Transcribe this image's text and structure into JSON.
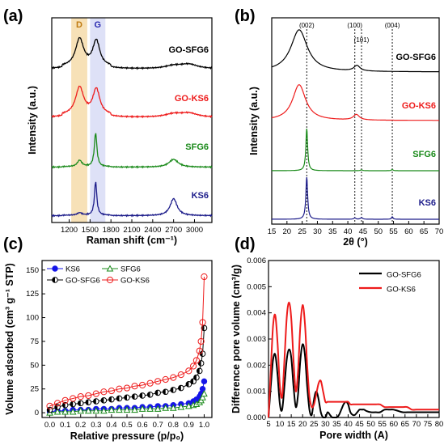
{
  "figure": {
    "panels": {
      "a": "(a)",
      "b": "(b)",
      "c": "(c)",
      "d": "(d)"
    }
  },
  "chart_data": [
    {
      "panel": "(a)",
      "type": "line",
      "xlabel": "Raman shift (cm⁻¹)",
      "ylabel": "Intensity (a.u.)",
      "xlim": [
        950,
        3250
      ],
      "xticks": [
        1200,
        1500,
        1800,
        2100,
        2400,
        2700,
        3000
      ],
      "bands": [
        {
          "label": "D",
          "range": [
            1230,
            1460
          ],
          "color": "#f6dcaa",
          "label_color": "#c07a10"
        },
        {
          "label": "G",
          "range": [
            1500,
            1720
          ],
          "color": "#d8dcf6",
          "label_color": "#2b2bb0"
        }
      ],
      "series": [
        {
          "name": "GO-SFG6",
          "color": "#000000",
          "offset": 3,
          "peaks": [
            [
              1350,
              0.78,
              70
            ],
            [
              1590,
              0.72,
              60
            ],
            [
              2700,
              0.08,
              150
            ],
            [
              2920,
              0.12,
              150
            ]
          ],
          "baseline": 0.1
        },
        {
          "name": "GO-KS6",
          "color": "#ee1c1c",
          "offset": 2,
          "peaks": [
            [
              1350,
              0.78,
              70
            ],
            [
              1590,
              0.72,
              60
            ],
            [
              2700,
              0.09,
              150
            ],
            [
              2920,
              0.11,
              150
            ]
          ],
          "baseline": 0.1
        },
        {
          "name": "SFG6",
          "color": "#1a8a1a",
          "offset": 1,
          "peaks": [
            [
              1350,
              0.18,
              40
            ],
            [
              1580,
              0.95,
              22
            ],
            [
              2700,
              0.22,
              80
            ]
          ],
          "baseline": 0.02
        },
        {
          "name": "KS6",
          "color": "#1c1c8a",
          "offset": 0,
          "peaks": [
            [
              1350,
              0.07,
              40
            ],
            [
              1580,
              0.95,
              20
            ],
            [
              2700,
              0.48,
              60
            ]
          ],
          "baseline": 0.02
        }
      ]
    },
    {
      "panel": "(b)",
      "type": "line",
      "xlabel": "2θ (°)",
      "ylabel": "Intensity (a.u.)",
      "xlim": [
        15,
        70
      ],
      "xticks": [
        15,
        20,
        25,
        30,
        35,
        40,
        45,
        50,
        55,
        60,
        65,
        70
      ],
      "reference_lines": [
        {
          "x": 26.5,
          "label": "(002)"
        },
        {
          "x": 42.3,
          "label": "(100)"
        },
        {
          "x": 44.5,
          "label": "(101)"
        },
        {
          "x": 54.6,
          "label": "(004)"
        }
      ],
      "series": [
        {
          "name": "GO-SFG6",
          "color": "#000000",
          "offset": 3,
          "peaks": [
            [
              24.0,
              1.0,
              3.3
            ],
            [
              43.0,
              0.13,
              1.2
            ]
          ],
          "baseline": 0.04
        },
        {
          "name": "GO-KS6",
          "color": "#ee1c1c",
          "offset": 2,
          "peaks": [
            [
              24.0,
              0.85,
              2.6
            ],
            [
              42.8,
              0.13,
              1.2
            ]
          ],
          "baseline": 0.04
        },
        {
          "name": "SFG6",
          "color": "#1a8a1a",
          "offset": 1,
          "peaks": [
            [
              26.5,
              1.0,
              0.35
            ],
            [
              44.5,
              0.02,
              0.4
            ],
            [
              54.6,
              0.03,
              0.3
            ]
          ],
          "baseline": 0.0
        },
        {
          "name": "KS6",
          "color": "#1c1c8a",
          "offset": 0,
          "peaks": [
            [
              26.5,
              1.0,
              0.35
            ],
            [
              42.3,
              0.03,
              0.4
            ],
            [
              44.5,
              0.04,
              0.4
            ],
            [
              54.6,
              0.06,
              0.3
            ]
          ],
          "baseline": 0.0
        }
      ]
    },
    {
      "panel": "(c)",
      "type": "scatter",
      "xlabel": "Relative pressure (p/p₀)",
      "ylabel": "Volume adsorbed (cm³ g⁻¹ STP)",
      "xlim": [
        -0.05,
        1.05
      ],
      "ylim": [
        -5,
        160
      ],
      "xticks": [
        0.0,
        0.1,
        0.2,
        0.3,
        0.4,
        0.5,
        0.6,
        0.7,
        0.8,
        0.9,
        1.0
      ],
      "yticks": [
        0,
        25,
        50,
        75,
        100,
        125,
        150
      ],
      "x": [
        0.0,
        0.05,
        0.1,
        0.15,
        0.2,
        0.25,
        0.3,
        0.35,
        0.4,
        0.45,
        0.5,
        0.55,
        0.6,
        0.65,
        0.7,
        0.75,
        0.8,
        0.85,
        0.9,
        0.93,
        0.95,
        0.97,
        0.98,
        0.99,
        1.0
      ],
      "series": [
        {
          "name": "KS6",
          "color": "#1515e8",
          "marker": "circle-filled",
          "values": [
            1,
            2,
            2,
            3,
            3,
            3,
            4,
            4,
            4,
            5,
            5,
            5,
            6,
            6,
            7,
            7,
            8,
            9,
            10,
            12,
            14,
            17,
            20,
            25,
            33
          ]
        },
        {
          "name": "SFG6",
          "color": "#1a8a1a",
          "marker": "triangle-open",
          "values": [
            0,
            1,
            1,
            1,
            2,
            2,
            2,
            2,
            3,
            3,
            3,
            3,
            4,
            4,
            4,
            5,
            5,
            6,
            7,
            8,
            9,
            11,
            13,
            16,
            20
          ]
        },
        {
          "name": "GO-SFG6",
          "color": "#000000",
          "marker": "circle-half",
          "values": [
            3,
            6,
            8,
            9,
            10,
            11,
            12,
            13,
            14,
            15,
            16,
            17,
            18,
            19,
            21,
            22,
            24,
            26,
            30,
            33,
            37,
            44,
            52,
            62,
            89
          ]
        },
        {
          "name": "GO-KS6",
          "color": "#ee1c1c",
          "marker": "circle-open",
          "values": [
            7,
            10,
            13,
            15,
            17,
            18,
            20,
            22,
            23,
            25,
            26,
            28,
            29,
            31,
            33,
            35,
            37,
            40,
            44,
            49,
            55,
            65,
            75,
            95,
            143
          ]
        }
      ]
    },
    {
      "panel": "(d)",
      "type": "line",
      "xlabel": "Pore width (A)",
      "ylabel": "Difference pore volume (cm³/g)",
      "xlim": [
        5,
        80
      ],
      "ylim": [
        0,
        0.006
      ],
      "xticks": [
        5,
        10,
        15,
        20,
        25,
        30,
        35,
        40,
        45,
        50,
        55,
        60,
        65,
        70,
        75,
        80
      ],
      "yticks": [
        0.0,
        0.001,
        0.002,
        0.003,
        0.004,
        0.005,
        0.006
      ],
      "series": [
        {
          "name": "GO-SFG6",
          "color": "#000000",
          "x": [
            5,
            6,
            7,
            8,
            9,
            10,
            11,
            12,
            13,
            14,
            15,
            16,
            17,
            18,
            19,
            20,
            21,
            22,
            23,
            24,
            25,
            26,
            27,
            28,
            29,
            30,
            31,
            32,
            33,
            34,
            35,
            36,
            37,
            38,
            39,
            40,
            41,
            42,
            43,
            44,
            45,
            46,
            47,
            48,
            50,
            52,
            54,
            56,
            58,
            60,
            62,
            64,
            66,
            68,
            70,
            72,
            74,
            76,
            78,
            80
          ],
          "values": [
            0.0,
            0.0012,
            0.0022,
            0.0024,
            0.0016,
            0.0005,
            0.0003,
            0.0012,
            0.0022,
            0.0026,
            0.0023,
            0.0012,
            0.0004,
            0.0009,
            0.0022,
            0.0028,
            0.0024,
            0.0012,
            0.0003,
            0.0001,
            0.0007,
            0.001,
            0.0007,
            0.0002,
            0.0,
            0.0,
            0.0002,
            0.0001,
            0.0,
            0.0,
            0.0,
            0.0001,
            0.0003,
            0.0005,
            0.0006,
            0.0005,
            0.0002,
            0.0001,
            0.0001,
            0.0002,
            0.0003,
            0.0003,
            0.0003,
            0.00025,
            0.0002,
            0.0002,
            0.0002,
            0.0003,
            0.0003,
            0.0003,
            0.00025,
            0.0002,
            0.0002,
            0.0002,
            0.0002,
            0.0002,
            0.0002,
            0.0002,
            0.0002,
            0.0002
          ]
        },
        {
          "name": "GO-KS6",
          "color": "#ee1c1c",
          "x": [
            5,
            6,
            7,
            8,
            9,
            10,
            11,
            12,
            13,
            14,
            15,
            16,
            17,
            18,
            19,
            20,
            21,
            22,
            23,
            24,
            25,
            26,
            27,
            28,
            29,
            30,
            31,
            32,
            33,
            34,
            35,
            36,
            37,
            38,
            39,
            40,
            41,
            42,
            43,
            44,
            45,
            46,
            47,
            48,
            50,
            52,
            54,
            56,
            58,
            60,
            62,
            64,
            66,
            68,
            70,
            72,
            74,
            76,
            78,
            80
          ],
          "values": [
            0.0,
            0.0018,
            0.0035,
            0.0039,
            0.0028,
            0.0012,
            0.0008,
            0.0022,
            0.0038,
            0.0044,
            0.0038,
            0.0022,
            0.001,
            0.0018,
            0.0035,
            0.0043,
            0.0036,
            0.002,
            0.0008,
            0.0004,
            0.0005,
            0.0009,
            0.0013,
            0.0014,
            0.001,
            0.0006,
            0.0006,
            0.0006,
            0.0006,
            0.0006,
            0.0006,
            0.0006,
            0.0006,
            0.0006,
            0.0006,
            0.0006,
            0.0005,
            0.0005,
            0.0005,
            0.0005,
            0.0005,
            0.0005,
            0.0005,
            0.0005,
            0.0005,
            0.0005,
            0.0005,
            0.0004,
            0.0004,
            0.0004,
            0.0004,
            0.0004,
            0.0004,
            0.0003,
            0.0003,
            0.0003,
            0.0003,
            0.0003,
            0.0003,
            0.0003
          ]
        }
      ]
    }
  ]
}
